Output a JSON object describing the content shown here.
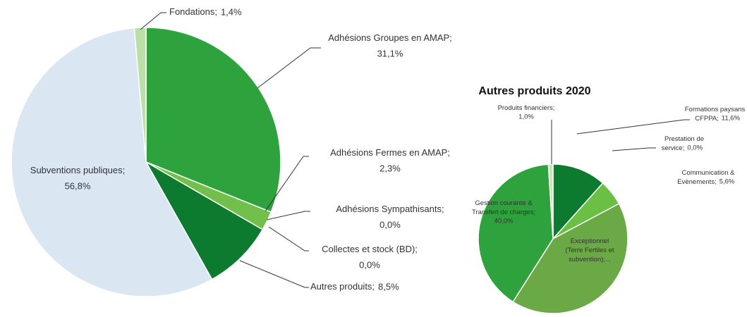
{
  "chart_data": [
    {
      "type": "pie",
      "categories": [
        "Adhésions Groupes en AMAP;",
        "Adhésions Fermes en AMAP;",
        "Adhésions Sympathisants;",
        "Collectes et stock (BD);",
        "Autres produits;",
        "Subventions publiques;",
        "Fondations;"
      ],
      "values": [
        31.1,
        2.3,
        0.0,
        0.0,
        8.5,
        56.8,
        1.4
      ],
      "value_labels": [
        "31,1%",
        "2,3%",
        "0,0%",
        "0,0%",
        "8,5%",
        "56,8%",
        "1,4%"
      ],
      "colors": [
        "#2ea23c",
        "#72c04b",
        "#9fd27c",
        "#4bb04a",
        "#0c7a2f",
        "#dbe6f3",
        "#bcdfa8"
      ]
    },
    {
      "type": "pie",
      "title": "Autres produits 2020",
      "categories": [
        "Formations paysans &\nCFPPA;",
        "Prestation de\nservice;",
        "Communication &\nEvènements;",
        "Exceptionnel\n(Terre Fertiles et\nsubvention);...",
        "Gestion courante &\nTransfert de charges;",
        "Produits financiers;"
      ],
      "values": [
        11.6,
        0.0,
        5.6,
        41.8,
        40.0,
        1.0
      ],
      "value_labels": [
        "11,6%",
        "0,0%",
        "5,6%",
        null,
        "40,0%",
        "1,0%"
      ],
      "colors": [
        "#0c7a2f",
        "#4bb04a",
        "#6cbf45",
        "#6aa945",
        "#2ea23c",
        "#c9e4b8"
      ]
    }
  ]
}
